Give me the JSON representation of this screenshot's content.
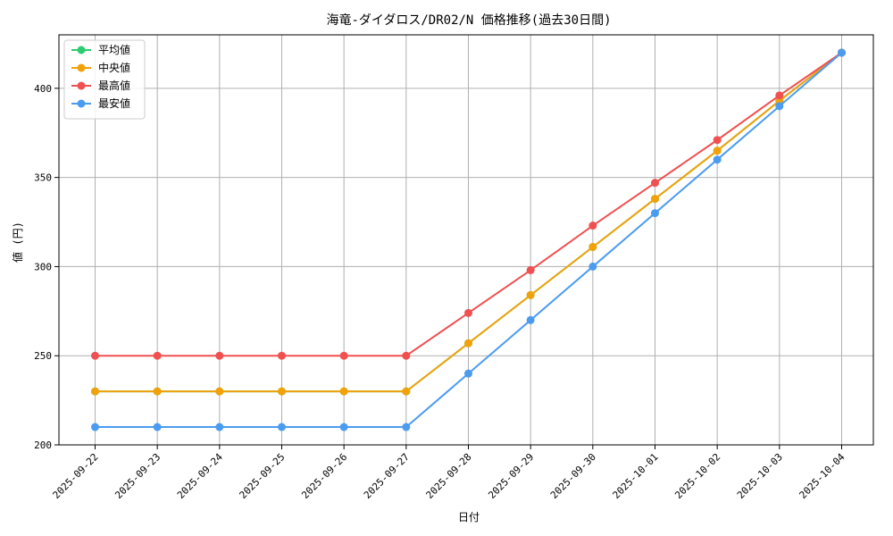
{
  "chart_data": {
    "type": "line",
    "title": "海竜-ダイダロス/DR02/N 価格推移(過去30日間)",
    "xlabel": "日付",
    "ylabel": "値 (円)",
    "categories": [
      "2025-09-22",
      "2025-09-23",
      "2025-09-24",
      "2025-09-25",
      "2025-09-26",
      "2025-09-27",
      "2025-09-28",
      "2025-09-29",
      "2025-09-30",
      "2025-10-01",
      "2025-10-02",
      "2025-10-03",
      "2025-10-04"
    ],
    "ylim": [
      200,
      430
    ],
    "yticks": [
      200,
      250,
      300,
      350,
      400
    ],
    "grid": true,
    "legend_position": "top-left",
    "series": [
      {
        "name": "平均値",
        "color": "#2ecc71",
        "values": [
          230,
          230,
          230,
          230,
          230,
          230,
          257,
          284,
          311,
          338,
          365,
          393,
          420
        ]
      },
      {
        "name": "中央値",
        "color": "#f1a20b",
        "values": [
          230,
          230,
          230,
          230,
          230,
          230,
          257,
          284,
          311,
          338,
          365,
          393,
          420
        ]
      },
      {
        "name": "最高値",
        "color": "#f05050",
        "values": [
          250,
          250,
          250,
          250,
          250,
          250,
          274,
          298,
          323,
          347,
          371,
          396,
          420
        ]
      },
      {
        "name": "最安値",
        "color": "#4b9cf0",
        "values": [
          210,
          210,
          210,
          210,
          210,
          210,
          240,
          270,
          300,
          330,
          360,
          390,
          420
        ]
      }
    ]
  }
}
